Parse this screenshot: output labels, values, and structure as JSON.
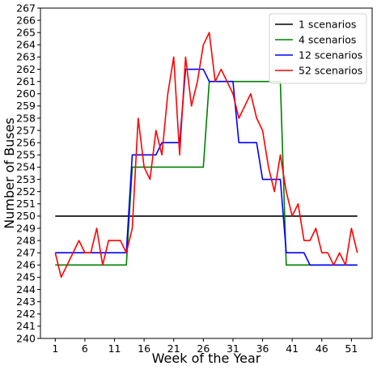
{
  "chart_data": {
    "type": "line",
    "title": "",
    "xlabel": "Week of the Year",
    "ylabel": "Number of Buses",
    "xlim": [
      -1.5,
      54.5
    ],
    "ylim": [
      240,
      267
    ],
    "grid": false,
    "legend_position": "top-right",
    "xticks": [
      1,
      6,
      11,
      16,
      21,
      26,
      31,
      36,
      41,
      46,
      51
    ],
    "yticks": [
      240,
      241,
      242,
      243,
      244,
      245,
      246,
      247,
      248,
      249,
      250,
      251,
      252,
      253,
      254,
      255,
      256,
      257,
      258,
      259,
      260,
      261,
      262,
      263,
      264,
      265,
      266,
      267
    ],
    "series": [
      {
        "name": "1 scenarios",
        "color": "#000000",
        "step": false,
        "x": [
          1,
          52
        ],
        "y": [
          250,
          250
        ]
      },
      {
        "name": "4 scenarios",
        "color": "#008000",
        "step": true,
        "x": [
          1,
          13,
          14,
          26,
          27,
          39,
          40,
          52
        ],
        "y": [
          246,
          246,
          254,
          254,
          261,
          261,
          246,
          246
        ]
      },
      {
        "name": "12 scenarios",
        "color": "#0000ff",
        "step": true,
        "x": [
          1,
          13,
          14,
          18,
          19,
          22,
          23,
          26,
          27,
          31,
          32,
          35,
          36,
          39,
          40,
          43,
          44,
          52
        ],
        "y": [
          247,
          247,
          255,
          255,
          256,
          256,
          262,
          262,
          261,
          261,
          256,
          256,
          253,
          253,
          247,
          247,
          246,
          246
        ]
      },
      {
        "name": "52 scenarios",
        "color": "#ff0000",
        "step": false,
        "x": [
          1,
          2,
          3,
          4,
          5,
          6,
          7,
          8,
          9,
          10,
          11,
          12,
          13,
          14,
          15,
          16,
          17,
          18,
          19,
          20,
          21,
          22,
          23,
          24,
          25,
          26,
          27,
          28,
          29,
          30,
          31,
          32,
          33,
          34,
          35,
          36,
          37,
          38,
          39,
          40,
          41,
          42,
          43,
          44,
          45,
          46,
          47,
          48,
          49,
          50,
          51,
          52
        ],
        "y": [
          247,
          245,
          246,
          247,
          248,
          247,
          247,
          249,
          246,
          248,
          248,
          248,
          247,
          249,
          258,
          254,
          253,
          257,
          255,
          260,
          263,
          255,
          263,
          259,
          261,
          264,
          265,
          261,
          262,
          261,
          260,
          258,
          259,
          260,
          258,
          257,
          254,
          252,
          255,
          252,
          250,
          251,
          248,
          248,
          249,
          247,
          247,
          246,
          247,
          246,
          249,
          247
        ]
      }
    ]
  }
}
